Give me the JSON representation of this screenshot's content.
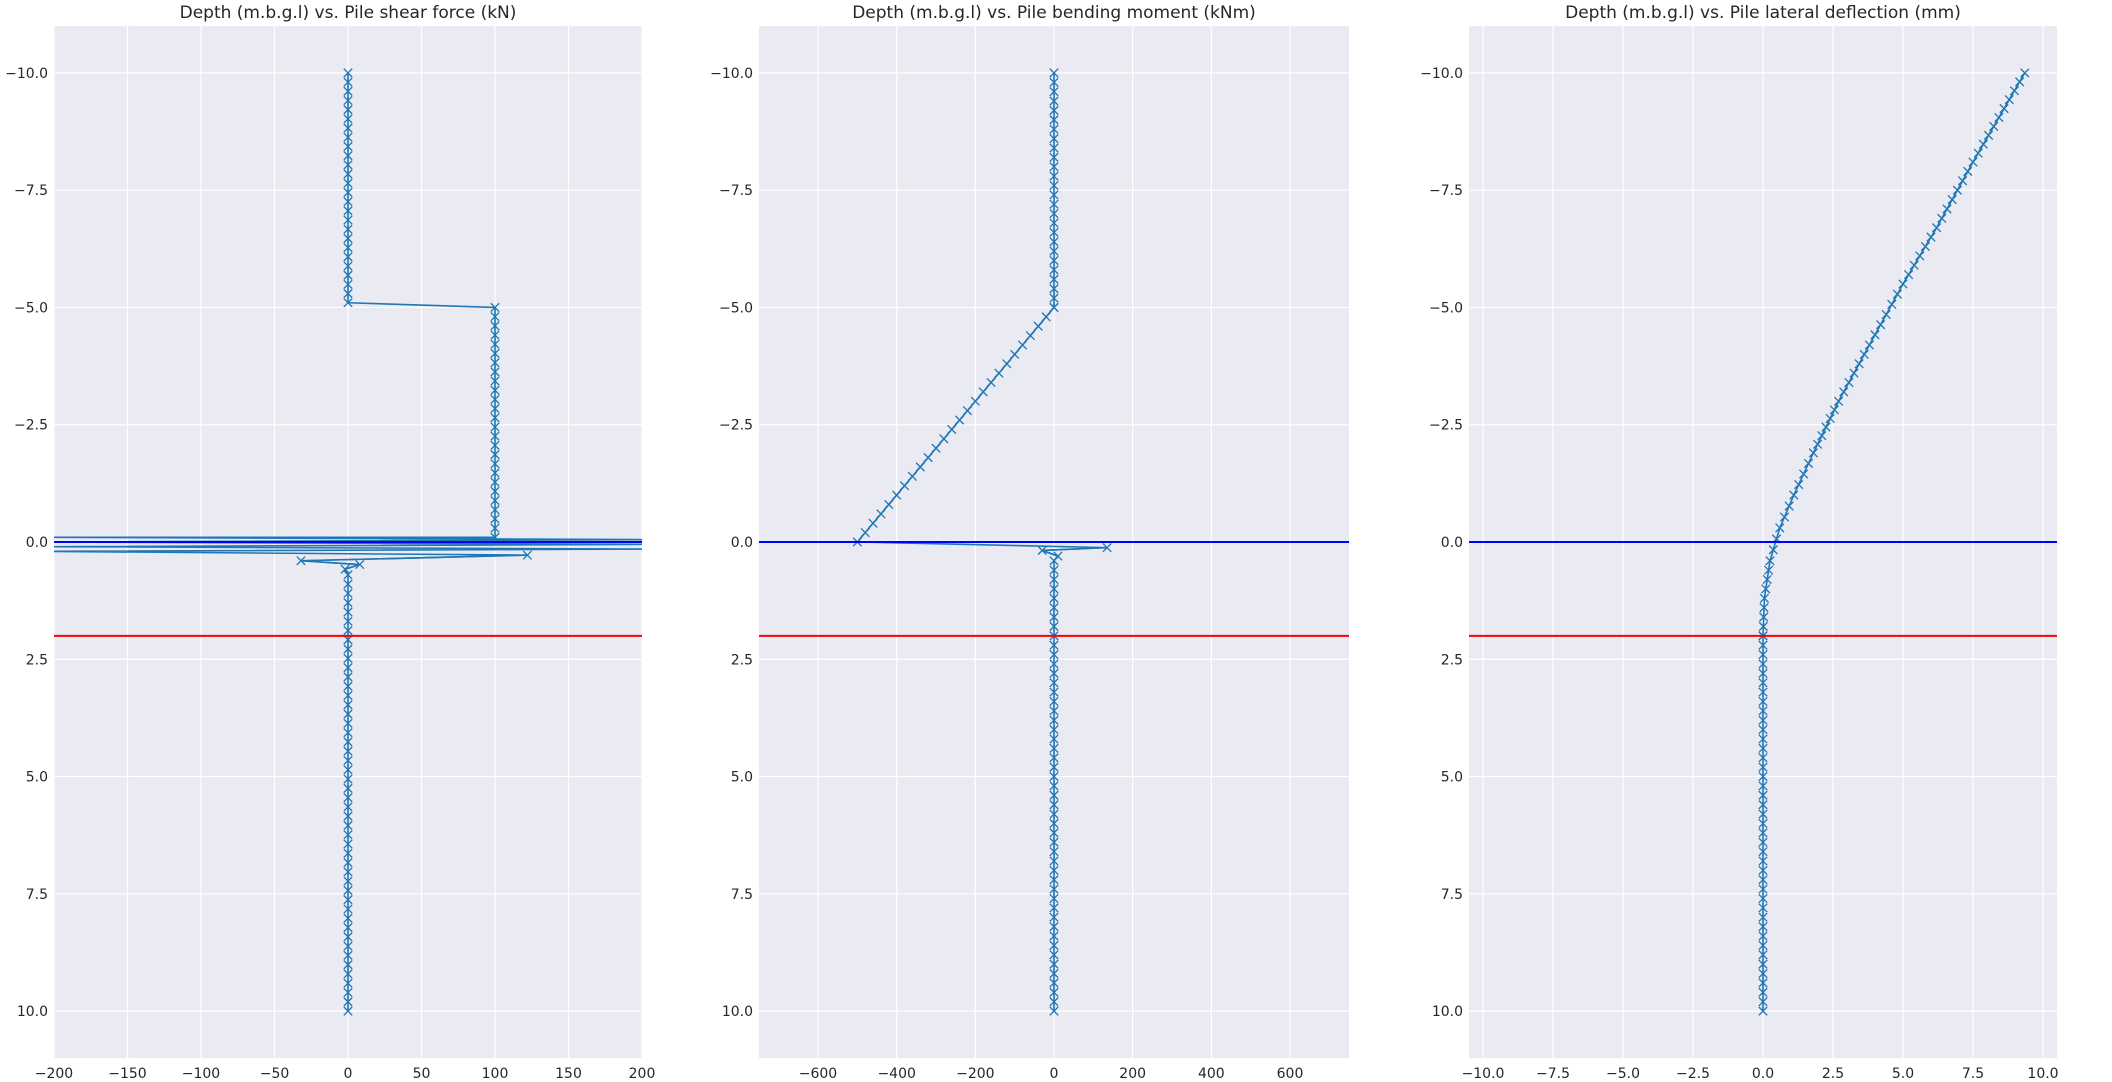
{
  "chart_data": [
    {
      "type": "line",
      "title": "Depth (m.b.g.l) vs. Pile shear force (kN)",
      "xlim": [
        -200,
        200
      ],
      "ylim": [
        -11,
        11
      ],
      "y_inverted": true,
      "xticks": [
        "−200",
        "−150",
        "−100",
        "−50",
        "0",
        "50",
        "100",
        "150",
        "200"
      ],
      "yticks": [
        "−10.0",
        "−7.5",
        "−5.0",
        "−2.5",
        "0.0",
        "2.5",
        "5.0",
        "7.5",
        "10.0"
      ],
      "grid": true,
      "marker": "x",
      "series_color": "#1f77b4",
      "hlines": [
        {
          "y": 0.0,
          "color": "#0000ff"
        },
        {
          "y": 2.0,
          "color": "#ff0000"
        }
      ],
      "segments": [
        {
          "x": [
            0,
            0
          ],
          "y": [
            -10,
            -5.1
          ],
          "markers": true
        },
        {
          "x": [
            0,
            100
          ],
          "y": [
            -5.1,
            -5.0
          ],
          "markers": false
        },
        {
          "x": [
            100,
            100
          ],
          "y": [
            -5.0,
            -0.1
          ],
          "markers": true
        },
        {
          "x": [
            100,
            -205,
            205,
            -205,
            205,
            -205,
            205,
            -205,
            122,
            -32,
            8,
            -2,
            0
          ],
          "y": [
            -0.1,
            -0.1,
            -0.05,
            0.0,
            0.05,
            0.1,
            0.15,
            0.2,
            0.28,
            0.4,
            0.48,
            0.58,
            0.7
          ],
          "markers": false
        },
        {
          "x": [
            122,
            -32,
            8,
            -2
          ],
          "y": [
            0.28,
            0.4,
            0.48,
            0.58
          ],
          "markers": true
        },
        {
          "x": [
            0,
            0
          ],
          "y": [
            0.7,
            10
          ],
          "markers": true
        }
      ]
    },
    {
      "type": "line",
      "title": "Depth (m.b.g.l) vs. Pile bending moment (kNm)",
      "xlim": [
        -750,
        750
      ],
      "ylim": [
        -11,
        11
      ],
      "y_inverted": true,
      "xticks": [
        "−600",
        "−400",
        "−200",
        "0",
        "200",
        "400",
        "600"
      ],
      "yticks": [
        "−10.0",
        "−7.5",
        "−5.0",
        "−2.5",
        "0.0",
        "2.5",
        "5.0",
        "7.5",
        "10.0"
      ],
      "grid": true,
      "marker": "x",
      "series_color": "#1f77b4",
      "hlines": [
        {
          "y": 0.0,
          "color": "#0000ff"
        },
        {
          "y": 2.0,
          "color": "#ff0000"
        }
      ],
      "segments": [
        {
          "x": [
            0,
            0
          ],
          "y": [
            -10,
            -5.0
          ],
          "markers": true
        },
        {
          "x": [
            0,
            -500
          ],
          "y": [
            -5.0,
            0.0
          ],
          "markers": true
        },
        {
          "x": [
            -500,
            135,
            -30,
            10,
            0
          ],
          "y": [
            0.0,
            0.12,
            0.18,
            0.3,
            0.4
          ],
          "markers": false
        },
        {
          "x": [
            135,
            -30,
            10
          ],
          "y": [
            0.12,
            0.18,
            0.3
          ],
          "markers": true
        },
        {
          "x": [
            0,
            0
          ],
          "y": [
            0.4,
            10
          ],
          "markers": true
        }
      ]
    },
    {
      "type": "line",
      "title": "Depth (m.b.g.l) vs. Pile lateral deflection (mm)",
      "xlim": [
        -10.5,
        10.5
      ],
      "ylim": [
        -11,
        11
      ],
      "y_inverted": true,
      "xticks": [
        "−10.0",
        "−7.5",
        "−5.0",
        "−2.5",
        "0.0",
        "2.5",
        "5.0",
        "7.5",
        "10.0"
      ],
      "yticks": [
        "−10.0",
        "−7.5",
        "−5.0",
        "−2.5",
        "0.0",
        "2.5",
        "5.0",
        "7.5",
        "10.0"
      ],
      "grid": true,
      "marker": "x",
      "series_color": "#1f77b4",
      "hlines": [
        {
          "y": 0.0,
          "color": "#0000ff"
        },
        {
          "y": 2.0,
          "color": "#ff0000"
        }
      ],
      "segments": [
        {
          "x": [
            9.35,
            7.5,
            6.2,
            5.0,
            3.8,
            2.7,
            1.8,
            1.1,
            0.6,
            0.25,
            0.05,
            0.0
          ],
          "y": [
            -10,
            -8.1,
            -6.7,
            -5.5,
            -4.2,
            -3.0,
            -1.9,
            -1.0,
            -0.3,
            0.4,
            1.2,
            2.0
          ],
          "markers": true
        },
        {
          "x": [
            0,
            0
          ],
          "y": [
            2.0,
            10
          ],
          "markers": true
        }
      ]
    }
  ]
}
